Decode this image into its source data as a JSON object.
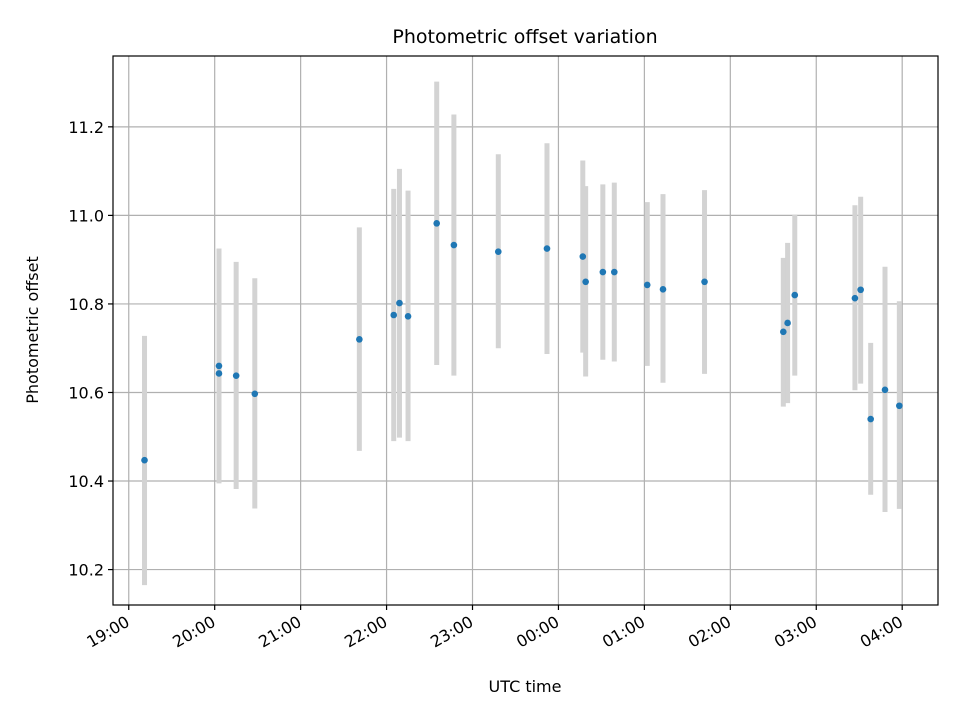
{
  "chart_data": {
    "type": "scatter",
    "title": "Photometric offset variation",
    "xlabel": "UTC time",
    "ylabel": "Photometric offset",
    "x_ticks": [
      "19:00",
      "20:00",
      "21:00",
      "22:00",
      "23:00",
      "00:00",
      "01:00",
      "02:00",
      "03:00",
      "04:00"
    ],
    "y_ticks": [
      "10.2",
      "10.4",
      "10.6",
      "10.8",
      "11.0",
      "11.2"
    ],
    "xlim": [
      "18:49",
      "04:25"
    ],
    "ylim": [
      10.12,
      11.36
    ],
    "grid": true,
    "marker_color": "#1f77b4",
    "errorbar_color": "#d3d3d3",
    "points": [
      {
        "t": "19:11",
        "y": 10.447,
        "lo": 10.165,
        "hi": 10.728
      },
      {
        "t": "20:03",
        "y": 10.66,
        "lo": 10.395,
        "hi": 10.925
      },
      {
        "t": "20:03",
        "y": 10.643,
        "lo": 10.395,
        "hi": 10.925
      },
      {
        "t": "20:15",
        "y": 10.638,
        "lo": 10.382,
        "hi": 10.895
      },
      {
        "t": "20:28",
        "y": 10.597,
        "lo": 10.338,
        "hi": 10.858
      },
      {
        "t": "21:41",
        "y": 10.72,
        "lo": 10.468,
        "hi": 10.973
      },
      {
        "t": "22:05",
        "y": 10.775,
        "lo": 10.49,
        "hi": 11.06
      },
      {
        "t": "22:09",
        "y": 10.802,
        "lo": 10.498,
        "hi": 11.105
      },
      {
        "t": "22:15",
        "y": 10.772,
        "lo": 10.49,
        "hi": 11.056
      },
      {
        "t": "22:35",
        "y": 10.982,
        "lo": 10.662,
        "hi": 11.302
      },
      {
        "t": "22:47",
        "y": 10.933,
        "lo": 10.638,
        "hi": 11.228
      },
      {
        "t": "23:18",
        "y": 10.918,
        "lo": 10.7,
        "hi": 11.138
      },
      {
        "t": "23:52",
        "y": 10.925,
        "lo": 10.687,
        "hi": 11.163
      },
      {
        "t": "00:17",
        "y": 10.907,
        "lo": 10.69,
        "hi": 11.124
      },
      {
        "t": "00:19",
        "y": 10.85,
        "lo": 10.636,
        "hi": 11.066
      },
      {
        "t": "00:31",
        "y": 10.872,
        "lo": 10.674,
        "hi": 11.07
      },
      {
        "t": "00:39",
        "y": 10.872,
        "lo": 10.67,
        "hi": 11.074
      },
      {
        "t": "01:02",
        "y": 10.843,
        "lo": 10.66,
        "hi": 11.03
      },
      {
        "t": "01:13",
        "y": 10.833,
        "lo": 10.622,
        "hi": 11.048
      },
      {
        "t": "01:42",
        "y": 10.85,
        "lo": 10.642,
        "hi": 11.057
      },
      {
        "t": "02:37",
        "y": 10.737,
        "lo": 10.568,
        "hi": 10.904
      },
      {
        "t": "02:40",
        "y": 10.757,
        "lo": 10.576,
        "hi": 10.938
      },
      {
        "t": "02:45",
        "y": 10.82,
        "lo": 10.638,
        "hi": 11.002
      },
      {
        "t": "03:27",
        "y": 10.813,
        "lo": 10.605,
        "hi": 11.023
      },
      {
        "t": "03:31",
        "y": 10.832,
        "lo": 10.62,
        "hi": 11.042
      },
      {
        "t": "03:38",
        "y": 10.54,
        "lo": 10.369,
        "hi": 10.712
      },
      {
        "t": "03:48",
        "y": 10.606,
        "lo": 10.33,
        "hi": 10.884
      },
      {
        "t": "03:58",
        "y": 10.57,
        "lo": 10.337,
        "hi": 10.806
      }
    ]
  }
}
